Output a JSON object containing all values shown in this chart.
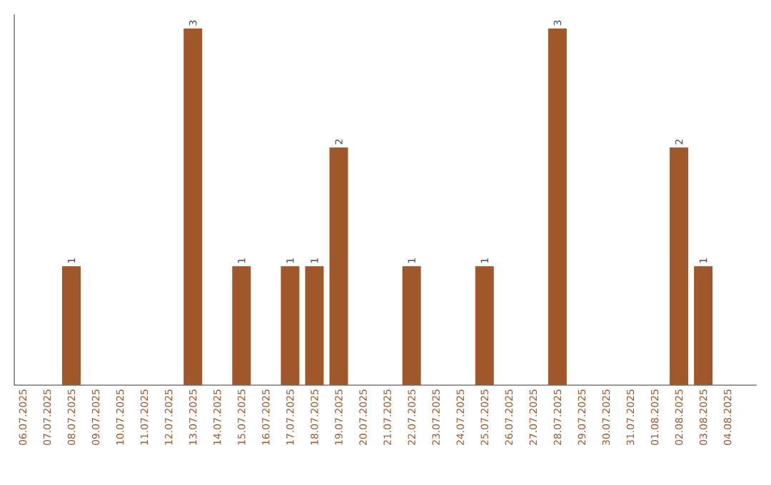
{
  "chart_data": {
    "type": "bar",
    "categories": [
      "06.07.2025",
      "07.07.2025",
      "08.07.2025",
      "09.07.2025",
      "10.07.2025",
      "11.07.2025",
      "12.07.2025",
      "13.07.2025",
      "14.07.2025",
      "15.07.2025",
      "16.07.2025",
      "17.07.2025",
      "18.07.2025",
      "19.07.2025",
      "20.07.2025",
      "21.07.2025",
      "22.07.2025",
      "23.07.2025",
      "24.07.2025",
      "25.07.2025",
      "26.07.2025",
      "27.07.2025",
      "28.07.2025",
      "29.07.2025",
      "30.07.2025",
      "31.07.2025",
      "01.08.2025",
      "02.08.2025",
      "03.08.2025",
      "04.08.2025"
    ],
    "values": [
      0,
      0,
      1,
      0,
      0,
      0,
      0,
      3,
      0,
      1,
      0,
      1,
      1,
      2,
      0,
      0,
      1,
      0,
      0,
      1,
      0,
      0,
      3,
      0,
      0,
      0,
      0,
      2,
      1,
      0
    ],
    "value_labels": [
      null,
      null,
      "1",
      null,
      null,
      null,
      null,
      "3",
      null,
      "1",
      null,
      "1",
      "1",
      "2",
      null,
      null,
      "1",
      null,
      null,
      "1",
      null,
      null,
      "3",
      null,
      null,
      null,
      null,
      "2",
      "1",
      null
    ],
    "color": "#a0572a",
    "tick_labels": "x"
  }
}
